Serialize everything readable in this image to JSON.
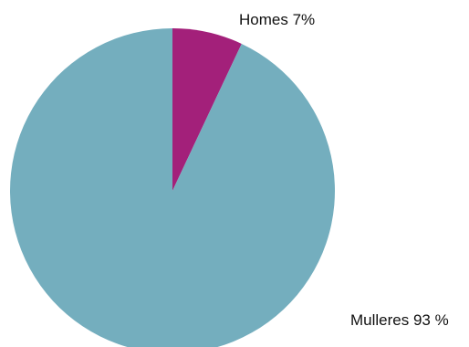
{
  "chart_data": {
    "type": "pie",
    "title": "",
    "slices": [
      {
        "label": "Homes 7%",
        "value": 7,
        "color": "#a3207a"
      },
      {
        "label": "Mulleres 93 %",
        "value": 93,
        "color": "#74aebe"
      }
    ],
    "start_angle_deg": 0,
    "direction": "clockwise",
    "legend": "none"
  }
}
